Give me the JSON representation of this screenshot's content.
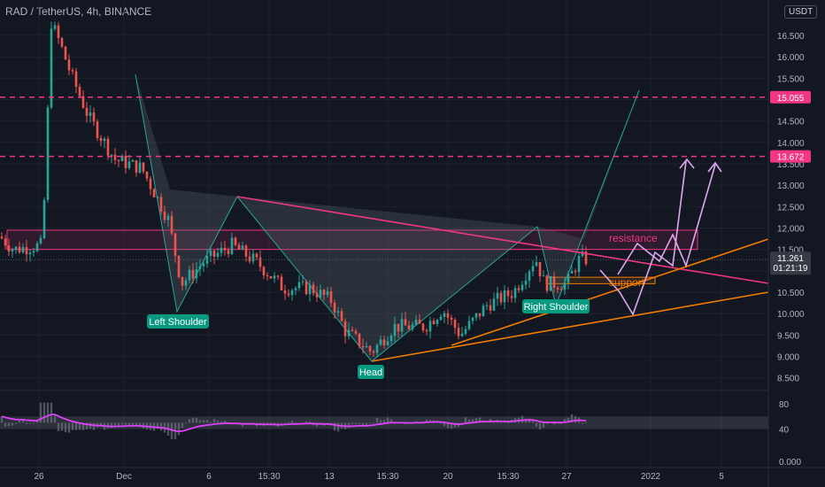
{
  "header": {
    "symbol_line": "RAD / TetherUS, 4h, BINANCE",
    "currency": "USDT"
  },
  "colors": {
    "background": "#131722",
    "up": "#26a69a",
    "down": "#ef5350",
    "resistance": "#f23681",
    "support": "#f57c00",
    "pattern_fill": "#5d6b73",
    "pattern_line": "#26a69a",
    "projection": "#e1a6ee",
    "rsi": "#e040fb",
    "current_price": "#131722"
  },
  "chart_data": [
    {
      "type": "candlestick",
      "title": "RAD / TetherUS, 4h, BINANCE",
      "x_ticks": [
        "26",
        "Dec",
        "6",
        "15:30",
        "13",
        "15:30",
        "20",
        "15:30",
        "27",
        "2022",
        "5"
      ],
      "y_ticks": [
        "16.500",
        "16.000",
        "15.500",
        "15.000",
        "14.500",
        "14.000",
        "13.500",
        "13.000",
        "12.500",
        "12.000",
        "11.500",
        "11.000",
        "10.500",
        "10.000",
        "9.500",
        "9.000",
        "8.500"
      ],
      "ylim": [
        8.35,
        16.85
      ],
      "current_price": {
        "value": "11.261",
        "countdown": "01:21:19"
      },
      "price_levels": [
        {
          "value": 15.055,
          "label": "15.055",
          "color": "#f23681",
          "style": "dashed"
        },
        {
          "value": 13.672,
          "label": "13.672",
          "color": "#f23681",
          "style": "dashed"
        }
      ],
      "resistance_zone": {
        "label": "resistance",
        "top": 11.95,
        "bottom": 11.5
      },
      "support_zone": {
        "label": "support",
        "top": 10.85,
        "bottom": 10.7
      },
      "pattern_labels": [
        "Left Shoulder",
        "Head",
        "Right Shoulder"
      ],
      "annotations": [
        "resistance",
        "support",
        "Left Shoulder",
        "Head",
        "Right Shoulder"
      ]
    },
    {
      "type": "line",
      "name": "RSI",
      "y_ticks": [
        "80",
        "40",
        "0.000"
      ],
      "band": [
        40,
        60
      ]
    }
  ]
}
